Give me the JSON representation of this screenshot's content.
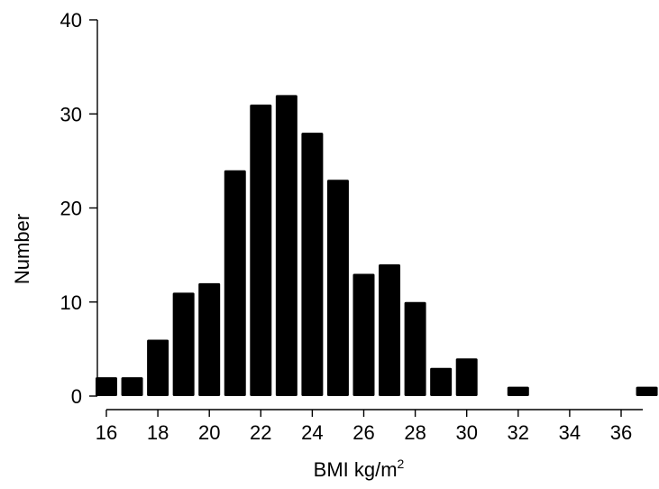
{
  "chart_data": {
    "type": "bar",
    "title": "",
    "xlabel": "BMI kg/m",
    "xlabel_superscript": "2",
    "ylabel": "Number",
    "xlim": [
      15.5,
      37.5
    ],
    "ylim": [
      0,
      40
    ],
    "xticks": [
      16,
      18,
      20,
      22,
      24,
      26,
      28,
      30,
      32,
      34,
      36
    ],
    "yticks": [
      0,
      10,
      20,
      30,
      40
    ],
    "grid": false,
    "bar_color": "#000000",
    "bins": [
      16,
      17,
      18,
      19,
      20,
      21,
      22,
      23,
      24,
      25,
      26,
      27,
      28,
      29,
      30,
      31,
      32,
      33,
      34,
      35,
      36,
      37
    ],
    "values": [
      2,
      2,
      6,
      11,
      12,
      24,
      31,
      32,
      28,
      23,
      13,
      14,
      10,
      3,
      4,
      0,
      1,
      0,
      0,
      0,
      0,
      1
    ]
  }
}
